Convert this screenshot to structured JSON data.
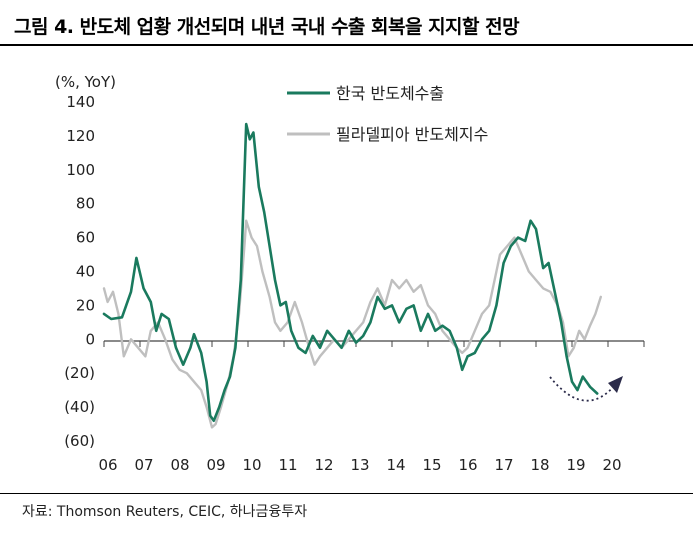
{
  "header": {
    "title": "그림 4. 반도체 업황 개선되며 내년 국내 수출 회복을 지지할 전망"
  },
  "footer": {
    "source": "자료: Thomson Reuters, CEIC, 하나금융투자"
  },
  "colors": {
    "export": "#1a7a5e",
    "sox": "#bfbfbf",
    "arrow": "#2b2b4a"
  },
  "chart_data": {
    "type": "line",
    "title": "",
    "ylabel": "(%, YoY)",
    "xlabel": "",
    "ylim": [
      -60,
      140
    ],
    "xlim": [
      2006.0,
      2021.0
    ],
    "y_ticks": [
      140,
      120,
      100,
      80,
      60,
      40,
      20,
      0,
      -20,
      -40,
      -60
    ],
    "y_tick_labels": [
      "140",
      "120",
      "100",
      "80",
      "60",
      "40",
      "20",
      "0",
      "(20)",
      "(40)",
      "(60)"
    ],
    "x_ticks": [
      2006,
      2007,
      2008,
      2009,
      2010,
      2011,
      2012,
      2013,
      2014,
      2015,
      2016,
      2017,
      2018,
      2019,
      2020
    ],
    "x_tick_labels": [
      "06",
      "07",
      "08",
      "09",
      "10",
      "11",
      "12",
      "13",
      "14",
      "15",
      "16",
      "17",
      "18",
      "19",
      "20"
    ],
    "legend_position": "top-center",
    "series": [
      {
        "name": "한국 반도체수출",
        "points": [
          [
            2006.0,
            15
          ],
          [
            2006.2,
            12
          ],
          [
            2006.5,
            13
          ],
          [
            2006.75,
            28
          ],
          [
            2006.9,
            48
          ],
          [
            2007.1,
            30
          ],
          [
            2007.3,
            22
          ],
          [
            2007.45,
            5
          ],
          [
            2007.6,
            15
          ],
          [
            2007.8,
            12
          ],
          [
            2008.0,
            -5
          ],
          [
            2008.2,
            -15
          ],
          [
            2008.4,
            -5
          ],
          [
            2008.5,
            3
          ],
          [
            2008.7,
            -8
          ],
          [
            2008.85,
            -25
          ],
          [
            2008.95,
            -45
          ],
          [
            2009.05,
            -48
          ],
          [
            2009.2,
            -40
          ],
          [
            2009.35,
            -30
          ],
          [
            2009.5,
            -22
          ],
          [
            2009.65,
            -5
          ],
          [
            2009.8,
            35
          ],
          [
            2009.95,
            127
          ],
          [
            2010.05,
            118
          ],
          [
            2010.15,
            122
          ],
          [
            2010.3,
            90
          ],
          [
            2010.45,
            75
          ],
          [
            2010.6,
            55
          ],
          [
            2010.75,
            35
          ],
          [
            2010.9,
            20
          ],
          [
            2011.05,
            22
          ],
          [
            2011.2,
            5
          ],
          [
            2011.4,
            -5
          ],
          [
            2011.6,
            -8
          ],
          [
            2011.8,
            2
          ],
          [
            2012.0,
            -5
          ],
          [
            2012.2,
            5
          ],
          [
            2012.4,
            0
          ],
          [
            2012.6,
            -5
          ],
          [
            2012.8,
            5
          ],
          [
            2013.0,
            -2
          ],
          [
            2013.2,
            2
          ],
          [
            2013.4,
            10
          ],
          [
            2013.6,
            25
          ],
          [
            2013.8,
            18
          ],
          [
            2014.0,
            20
          ],
          [
            2014.2,
            10
          ],
          [
            2014.4,
            18
          ],
          [
            2014.6,
            20
          ],
          [
            2014.8,
            5
          ],
          [
            2015.0,
            15
          ],
          [
            2015.2,
            5
          ],
          [
            2015.4,
            8
          ],
          [
            2015.6,
            5
          ],
          [
            2015.8,
            -5
          ],
          [
            2015.95,
            -18
          ],
          [
            2016.1,
            -10
          ],
          [
            2016.3,
            -8
          ],
          [
            2016.5,
            0
          ],
          [
            2016.7,
            5
          ],
          [
            2016.9,
            20
          ],
          [
            2017.1,
            45
          ],
          [
            2017.3,
            55
          ],
          [
            2017.5,
            60
          ],
          [
            2017.7,
            58
          ],
          [
            2017.85,
            70
          ],
          [
            2018.0,
            65
          ],
          [
            2018.2,
            42
          ],
          [
            2018.35,
            45
          ],
          [
            2018.5,
            30
          ],
          [
            2018.7,
            10
          ],
          [
            2018.85,
            -10
          ],
          [
            2019.0,
            -25
          ],
          [
            2019.15,
            -30
          ],
          [
            2019.3,
            -22
          ],
          [
            2019.5,
            -28
          ],
          [
            2019.7,
            -32
          ]
        ]
      },
      {
        "name": "필라델피아 반도체지수",
        "points": [
          [
            2006.0,
            30
          ],
          [
            2006.1,
            22
          ],
          [
            2006.25,
            28
          ],
          [
            2006.4,
            15
          ],
          [
            2006.55,
            -10
          ],
          [
            2006.75,
            0
          ],
          [
            2006.95,
            -5
          ],
          [
            2007.15,
            -10
          ],
          [
            2007.3,
            5
          ],
          [
            2007.5,
            10
          ],
          [
            2007.7,
            0
          ],
          [
            2007.9,
            -12
          ],
          [
            2008.1,
            -18
          ],
          [
            2008.3,
            -20
          ],
          [
            2008.5,
            -25
          ],
          [
            2008.7,
            -30
          ],
          [
            2008.85,
            -40
          ],
          [
            2009.0,
            -52
          ],
          [
            2009.1,
            -50
          ],
          [
            2009.25,
            -40
          ],
          [
            2009.45,
            -25
          ],
          [
            2009.6,
            -10
          ],
          [
            2009.75,
            15
          ],
          [
            2009.9,
            55
          ],
          [
            2009.95,
            70
          ],
          [
            2010.1,
            60
          ],
          [
            2010.25,
            55
          ],
          [
            2010.4,
            40
          ],
          [
            2010.6,
            25
          ],
          [
            2010.75,
            10
          ],
          [
            2010.9,
            5
          ],
          [
            2011.1,
            10
          ],
          [
            2011.3,
            22
          ],
          [
            2011.5,
            10
          ],
          [
            2011.7,
            -5
          ],
          [
            2011.85,
            -15
          ],
          [
            2012.0,
            -10
          ],
          [
            2012.2,
            -5
          ],
          [
            2012.4,
            0
          ],
          [
            2012.6,
            -5
          ],
          [
            2012.8,
            0
          ],
          [
            2013.0,
            5
          ],
          [
            2013.2,
            10
          ],
          [
            2013.4,
            22
          ],
          [
            2013.6,
            30
          ],
          [
            2013.8,
            20
          ],
          [
            2014.0,
            35
          ],
          [
            2014.2,
            30
          ],
          [
            2014.4,
            35
          ],
          [
            2014.6,
            28
          ],
          [
            2014.8,
            32
          ],
          [
            2015.0,
            20
          ],
          [
            2015.2,
            15
          ],
          [
            2015.4,
            5
          ],
          [
            2015.6,
            0
          ],
          [
            2015.8,
            -5
          ],
          [
            2015.95,
            -8
          ],
          [
            2016.1,
            -5
          ],
          [
            2016.3,
            5
          ],
          [
            2016.5,
            15
          ],
          [
            2016.7,
            20
          ],
          [
            2016.85,
            35
          ],
          [
            2017.0,
            50
          ],
          [
            2017.2,
            55
          ],
          [
            2017.4,
            60
          ],
          [
            2017.6,
            50
          ],
          [
            2017.8,
            40
          ],
          [
            2018.0,
            35
          ],
          [
            2018.2,
            30
          ],
          [
            2018.4,
            28
          ],
          [
            2018.6,
            20
          ],
          [
            2018.75,
            10
          ],
          [
            2018.9,
            -10
          ],
          [
            2019.05,
            -5
          ],
          [
            2019.2,
            5
          ],
          [
            2019.35,
            0
          ],
          [
            2019.5,
            8
          ],
          [
            2019.65,
            15
          ],
          [
            2019.8,
            25
          ]
        ]
      }
    ]
  }
}
